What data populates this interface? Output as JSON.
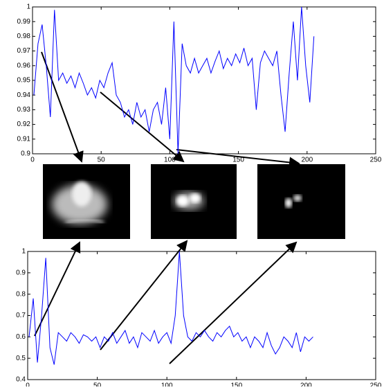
{
  "chart_data": [
    {
      "type": "line",
      "x": [
        1,
        4,
        7,
        10,
        13,
        16,
        19,
        22,
        25,
        28,
        31,
        34,
        37,
        40,
        43,
        46,
        49,
        52,
        55,
        58,
        61,
        64,
        67,
        70,
        73,
        76,
        79,
        82,
        85,
        88,
        91,
        94,
        97,
        100,
        103,
        106,
        109,
        112,
        115,
        118,
        121,
        124,
        127,
        130,
        133,
        136,
        139,
        142,
        145,
        148,
        151,
        154,
        157,
        160,
        163,
        166,
        169,
        172,
        175,
        178,
        181,
        184,
        187,
        190,
        193,
        196,
        199,
        202,
        205
      ],
      "series": [
        {
          "color": "#0000ff",
          "values": [
            0.94,
            0.975,
            0.988,
            0.96,
            0.925,
            0.998,
            0.95,
            0.955,
            0.948,
            0.953,
            0.945,
            0.955,
            0.948,
            0.94,
            0.945,
            0.938,
            0.95,
            0.945,
            0.955,
            0.962,
            0.94,
            0.935,
            0.925,
            0.93,
            0.92,
            0.935,
            0.925,
            0.93,
            0.915,
            0.93,
            0.935,
            0.92,
            0.945,
            0.91,
            0.99,
            0.9,
            0.975,
            0.96,
            0.955,
            0.965,
            0.955,
            0.96,
            0.965,
            0.955,
            0.963,
            0.97,
            0.958,
            0.965,
            0.96,
            0.968,
            0.962,
            0.972,
            0.96,
            0.965,
            0.93,
            0.962,
            0.97,
            0.965,
            0.96,
            0.97,
            0.94,
            0.915,
            0.955,
            0.99,
            0.95,
            1.0,
            0.96,
            0.935,
            0.98
          ]
        }
      ],
      "xlim": [
        0,
        250
      ],
      "xticks": [
        0,
        50,
        100,
        150,
        200,
        250
      ],
      "ylim": [
        0.9,
        1
      ],
      "yticks": [
        0.9,
        0.91,
        0.92,
        0.93,
        0.94,
        0.95,
        0.96,
        0.97,
        0.98,
        0.99,
        1
      ]
    },
    {
      "type": "line",
      "x": [
        1,
        4,
        7,
        10,
        13,
        16,
        19,
        22,
        25,
        28,
        31,
        34,
        37,
        40,
        43,
        46,
        49,
        52,
        55,
        58,
        61,
        64,
        67,
        70,
        73,
        76,
        79,
        82,
        85,
        88,
        91,
        94,
        97,
        100,
        103,
        106,
        109,
        112,
        115,
        118,
        121,
        124,
        127,
        130,
        133,
        136,
        139,
        142,
        145,
        148,
        151,
        154,
        157,
        160,
        163,
        166,
        169,
        172,
        175,
        178,
        181,
        184,
        187,
        190,
        193,
        196,
        199,
        202,
        205
      ],
      "series": [
        {
          "color": "#0000ff",
          "values": [
            0.6,
            0.78,
            0.48,
            0.7,
            0.97,
            0.55,
            0.47,
            0.62,
            0.6,
            0.58,
            0.62,
            0.6,
            0.57,
            0.61,
            0.6,
            0.58,
            0.6,
            0.55,
            0.6,
            0.58,
            0.62,
            0.57,
            0.6,
            0.63,
            0.57,
            0.6,
            0.55,
            0.62,
            0.6,
            0.58,
            0.63,
            0.57,
            0.6,
            0.62,
            0.57,
            0.7,
            1.0,
            0.7,
            0.6,
            0.58,
            0.62,
            0.6,
            0.63,
            0.6,
            0.58,
            0.62,
            0.6,
            0.63,
            0.65,
            0.6,
            0.62,
            0.58,
            0.6,
            0.55,
            0.6,
            0.58,
            0.55,
            0.62,
            0.56,
            0.52,
            0.55,
            0.6,
            0.58,
            0.55,
            0.62,
            0.53,
            0.6,
            0.58,
            0.6
          ]
        }
      ],
      "xlim": [
        0,
        250
      ],
      "xticks": [
        0,
        50,
        100,
        150,
        200,
        250
      ],
      "ylim": [
        0.4,
        1
      ],
      "yticks": [
        0.4,
        0.5,
        0.6,
        0.7,
        0.8,
        0.9,
        1
      ]
    }
  ]
}
